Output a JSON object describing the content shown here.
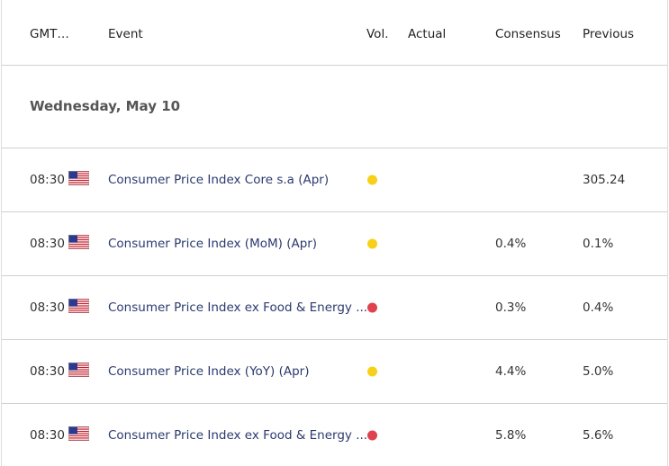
{
  "header": {
    "columns": [
      "GMT…",
      "Event",
      "Vol.",
      "Actual",
      "Consensus",
      "Previous"
    ]
  },
  "date": "Wednesday, May 10",
  "rows": [
    {
      "time": "08:30",
      "event": "Consumer Price Index Core s.a (Apr)",
      "vol_color": "#f7d117",
      "previous": "305.24"
    },
    {
      "time": "08:30",
      "event": "Consumer Price Index (MoM) (Apr)",
      "vol_color": "#f7d117",
      "consensus": "0.4%",
      "previous": "0.1%"
    },
    {
      "time": "08:30",
      "event": "Consumer Price Index ex Food & Energy ...",
      "vol_color": "#e0434f",
      "consensus": "0.3%",
      "previous": "0.4%"
    },
    {
      "time": "08:30",
      "event": "Consumer Price Index (YoY) (Apr)",
      "vol_color": "#f7d117",
      "consensus": "4.4%",
      "previous": "5.0%"
    },
    {
      "time": "08:30",
      "event": "Consumer Price Index ex Food & Energy ...",
      "vol_color": "#e0434f",
      "consensus": "5.8%",
      "previous": "5.6%"
    }
  ]
}
